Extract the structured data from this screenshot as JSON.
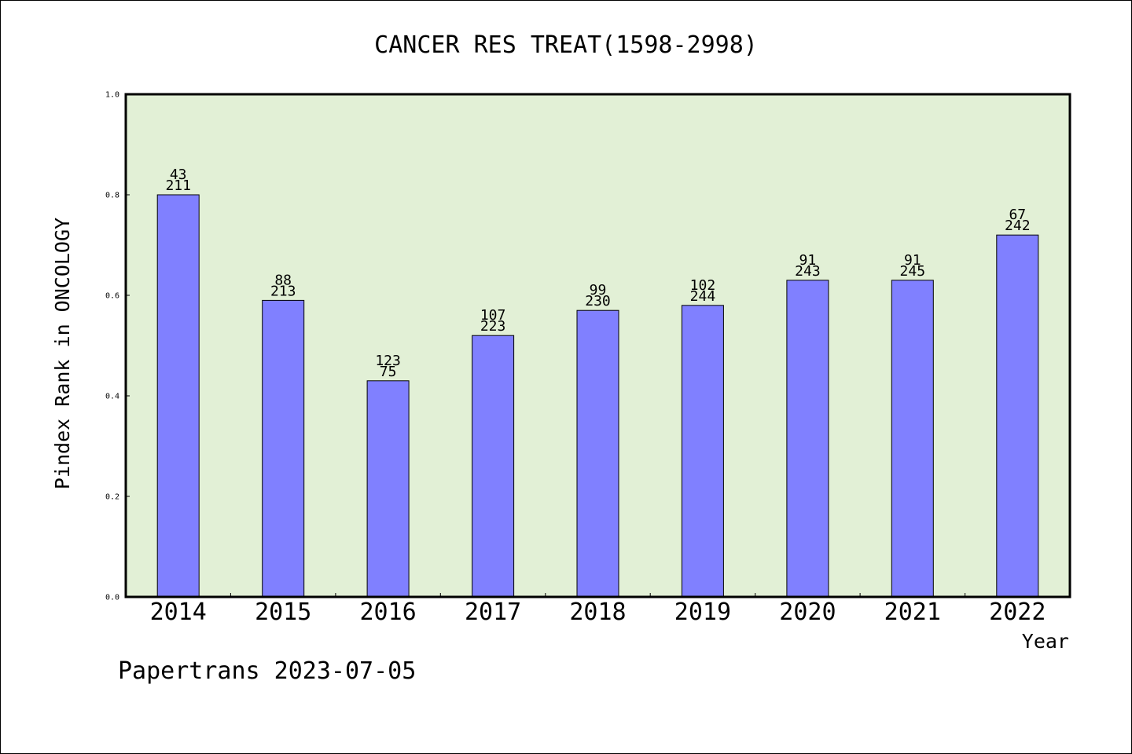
{
  "chart_data": {
    "type": "bar",
    "title": "CANCER RES TREAT(1598-2998)",
    "xlabel": "Year",
    "ylabel": "Pindex Rank in ONCOLOGY",
    "categories": [
      "2014",
      "2015",
      "2016",
      "2017",
      "2018",
      "2019",
      "2020",
      "2021",
      "2022"
    ],
    "values": [
      0.8,
      0.59,
      0.43,
      0.52,
      0.57,
      0.58,
      0.63,
      0.63,
      0.72
    ],
    "label_top": [
      "43",
      "88",
      "123",
      "107",
      "99",
      "102",
      "91",
      "91",
      "67"
    ],
    "label_bottom": [
      "211",
      "213",
      "75",
      "223",
      "230",
      "244",
      "243",
      "245",
      "242"
    ],
    "ylim": [
      0,
      1.0
    ],
    "yticks": [
      "0.0",
      "0.2",
      "0.4",
      "0.6",
      "0.8",
      "1.0"
    ],
    "grid": false,
    "legend": "none",
    "colors": {
      "bar": "#8080ff",
      "plot_background": "#e2f0d6",
      "axis": "#000000"
    }
  },
  "footer": {
    "credit": "Papertrans 2023-07-05"
  }
}
